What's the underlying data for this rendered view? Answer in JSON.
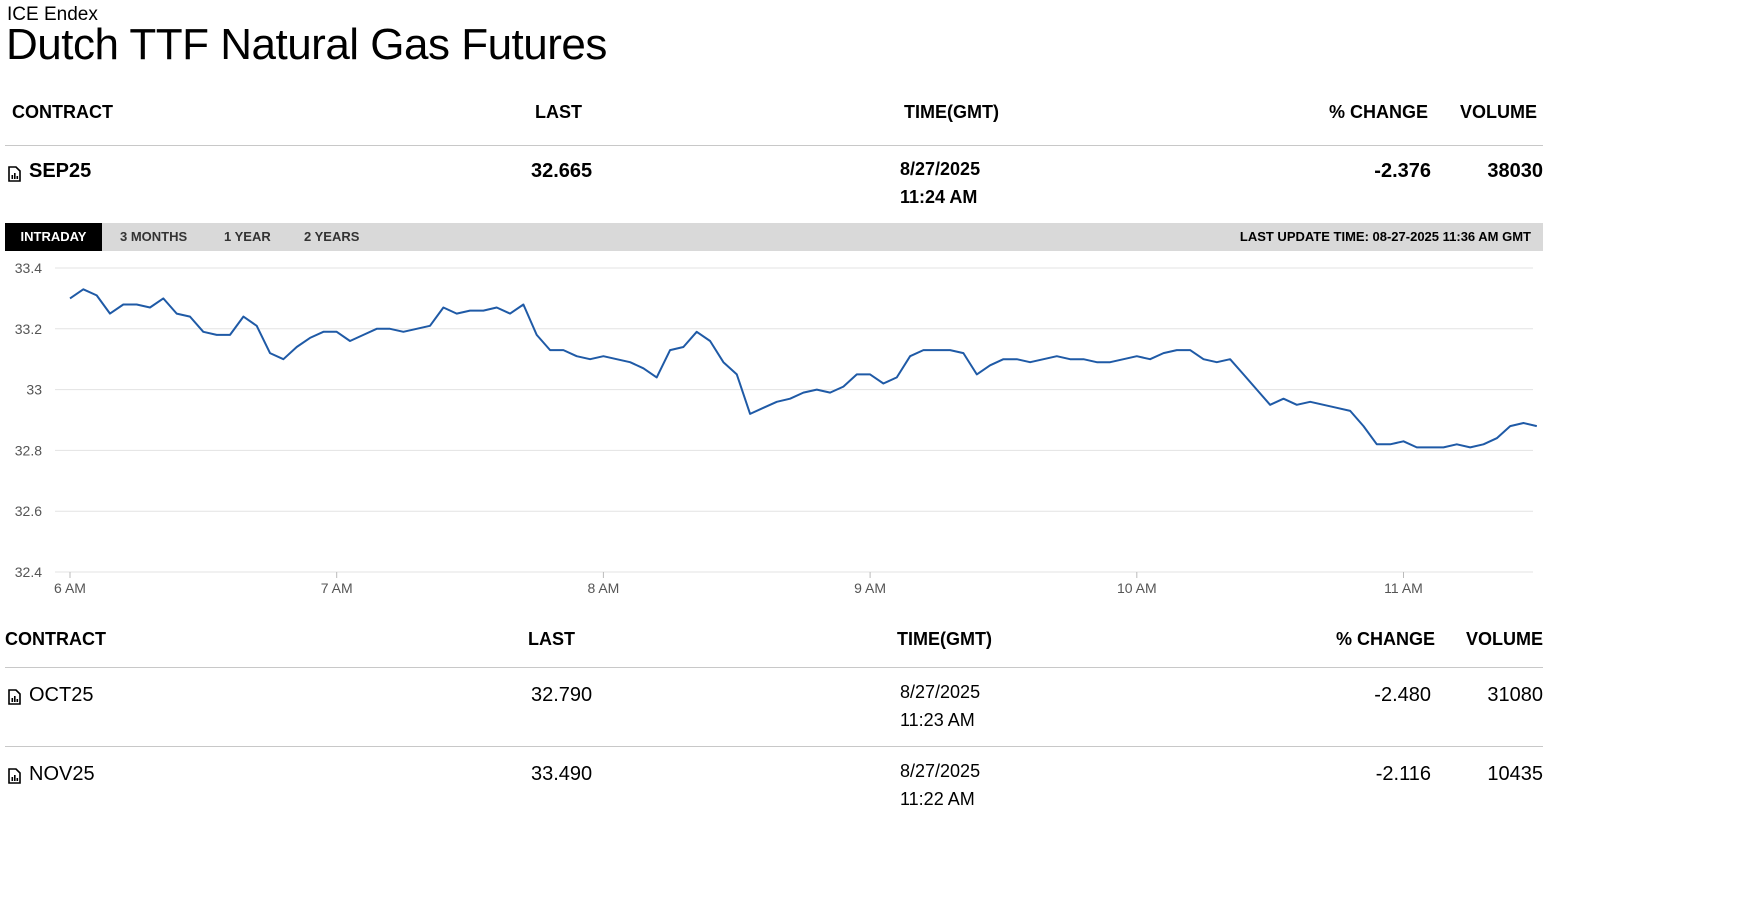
{
  "header": {
    "exchange": "ICE Endex",
    "title": "Dutch TTF Natural Gas Futures"
  },
  "columns": {
    "contract": "CONTRACT",
    "last": "LAST",
    "time": "TIME(GMT)",
    "change": "% CHANGE",
    "volume": "VOLUME"
  },
  "featured": {
    "contract": "SEP25",
    "last": "32.665",
    "date": "8/27/2025",
    "time": "11:24 AM",
    "change": "-2.376",
    "volume": "38030"
  },
  "tabs": [
    "INTRADAY",
    "3 MONTHS",
    "1 YEAR",
    "2 YEARS"
  ],
  "active_tab": "INTRADAY",
  "last_update": "LAST UPDATE TIME: 08-27-2025 11:36 AM GMT",
  "rows": [
    {
      "contract": "OCT25",
      "last": "32.790",
      "date": "8/27/2025",
      "time": "11:23 AM",
      "change": "-2.480",
      "volume": "31080"
    },
    {
      "contract": "NOV25",
      "last": "33.490",
      "date": "8/27/2025",
      "time": "11:22 AM",
      "change": "-2.116",
      "volume": "10435"
    }
  ],
  "chart_data": {
    "type": "line",
    "xlabel": "",
    "ylabel": "",
    "x_ticks": [
      "6 AM",
      "7 AM",
      "8 AM",
      "9 AM",
      "10 AM",
      "11 AM"
    ],
    "y_ticks": [
      "33.4",
      "33.2",
      "33",
      "32.8",
      "32.6",
      "32.4"
    ],
    "ylim": [
      32.4,
      33.4
    ],
    "x_unit": "minutes since 6 AM",
    "grid": true,
    "line_color": "#1f5aa6",
    "series": [
      {
        "x": [
          0,
          3,
          6,
          9,
          12,
          15,
          18,
          21,
          24,
          27,
          30,
          33,
          36,
          39,
          42,
          45,
          48,
          51,
          54,
          57,
          60,
          63,
          66,
          69,
          72,
          75,
          78,
          81,
          84,
          87,
          90,
          93,
          96,
          99,
          102,
          105,
          108,
          111,
          114,
          117,
          120,
          123,
          126,
          129,
          132,
          135,
          138,
          141,
          144,
          147,
          150,
          153,
          156,
          159,
          162,
          165,
          168,
          171,
          174,
          177,
          180,
          183,
          186,
          189,
          192,
          195,
          198,
          201,
          204,
          207,
          210,
          213,
          216,
          219,
          222,
          225,
          228,
          231,
          234,
          237,
          240,
          243,
          246,
          249,
          252,
          255,
          258,
          261,
          264,
          267,
          270,
          273,
          276,
          279,
          282,
          285,
          288,
          291,
          294,
          297,
          300,
          303,
          306,
          309,
          312,
          315,
          318,
          321,
          324,
          327,
          330
        ],
        "values": [
          33.3,
          33.33,
          33.31,
          33.25,
          33.28,
          33.28,
          33.27,
          33.3,
          33.25,
          33.24,
          33.19,
          33.18,
          33.18,
          33.24,
          33.21,
          33.12,
          33.1,
          33.14,
          33.17,
          33.19,
          33.19,
          33.16,
          33.18,
          33.2,
          33.2,
          33.19,
          33.2,
          33.21,
          33.27,
          33.25,
          33.26,
          33.26,
          33.27,
          33.25,
          33.28,
          33.18,
          33.13,
          33.13,
          33.11,
          33.1,
          33.11,
          33.1,
          33.09,
          33.07,
          33.04,
          33.13,
          33.14,
          33.19,
          33.16,
          33.09,
          33.05,
          32.92,
          32.94,
          32.96,
          32.97,
          32.99,
          33.0,
          32.99,
          33.01,
          33.05,
          33.05,
          33.02,
          33.04,
          33.11,
          33.13,
          33.13,
          33.13,
          33.12,
          33.05,
          33.08,
          33.1,
          33.1,
          33.09,
          33.1,
          33.11,
          33.1,
          33.1,
          33.09,
          33.09,
          33.1,
          33.11,
          33.1,
          33.12,
          33.13,
          33.13,
          33.1,
          33.09,
          33.1,
          33.05,
          33.0,
          32.95,
          32.97,
          32.95,
          32.96,
          32.95,
          32.94,
          32.93,
          32.88,
          32.82,
          32.82,
          32.83,
          32.81,
          32.81,
          32.81,
          32.82,
          32.81,
          32.82,
          32.84,
          32.88,
          32.89,
          32.88
        ]
      }
    ]
  }
}
